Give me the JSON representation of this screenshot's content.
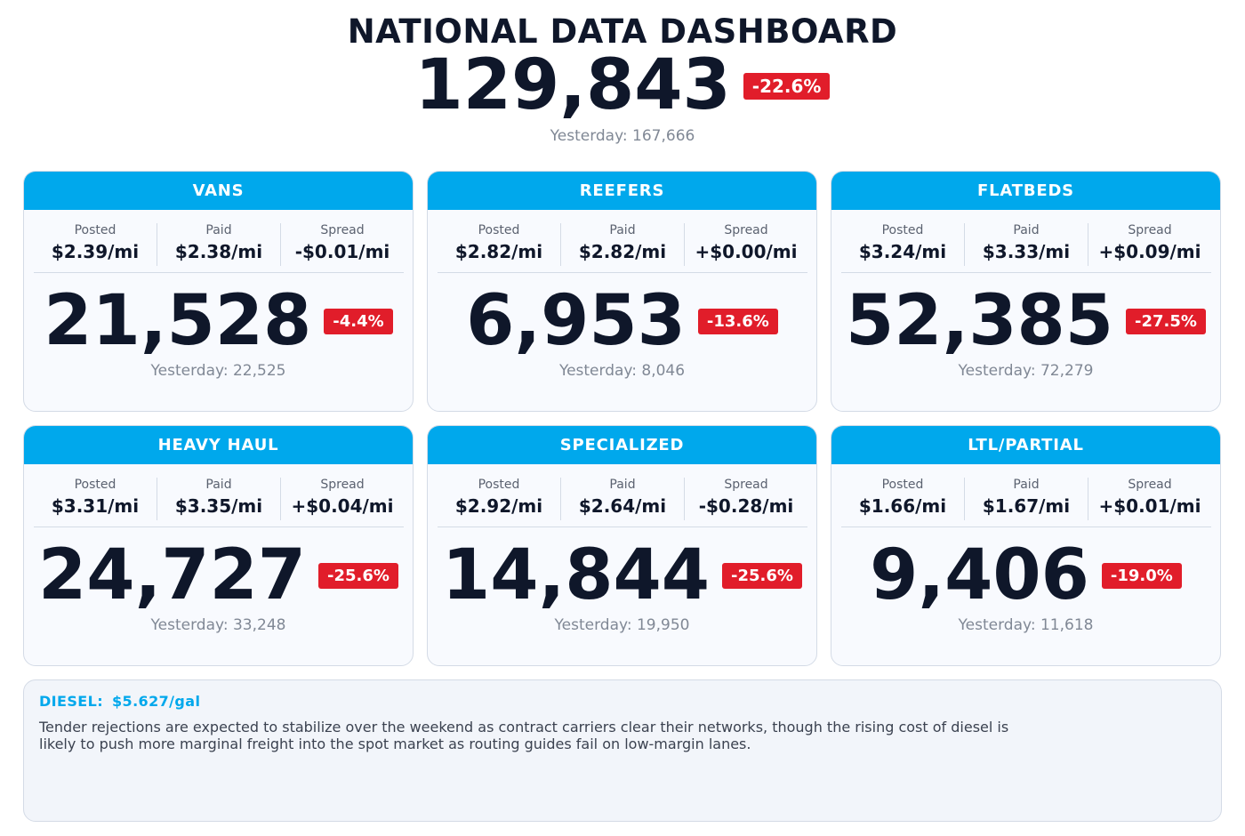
{
  "header": {
    "title": "NATIONAL DATA DASHBOARD",
    "total": "129,843",
    "change": "-22.6%",
    "yesterday": "Yesterday: 167,666"
  },
  "labels": {
    "posted": "Posted",
    "paid": "Paid",
    "spread": "Spread"
  },
  "cards": [
    {
      "title": "VANS",
      "posted": "$2.39/mi",
      "paid": "$2.38/mi",
      "spread": "-$0.01/mi",
      "count": "21,528",
      "change": "-4.4%",
      "yesterday": "Yesterday: 22,525"
    },
    {
      "title": "REEFERS",
      "posted": "$2.82/mi",
      "paid": "$2.82/mi",
      "spread": "+$0.00/mi",
      "count": "6,953",
      "change": "-13.6%",
      "yesterday": "Yesterday: 8,046"
    },
    {
      "title": "FLATBEDS",
      "posted": "$3.24/mi",
      "paid": "$3.33/mi",
      "spread": "+$0.09/mi",
      "count": "52,385",
      "change": "-27.5%",
      "yesterday": "Yesterday: 72,279"
    },
    {
      "title": "HEAVY HAUL",
      "posted": "$3.31/mi",
      "paid": "$3.35/mi",
      "spread": "+$0.04/mi",
      "count": "24,727",
      "change": "-25.6%",
      "yesterday": "Yesterday: 33,248"
    },
    {
      "title": "SPECIALIZED",
      "posted": "$2.92/mi",
      "paid": "$2.64/mi",
      "spread": "-$0.28/mi",
      "count": "14,844",
      "change": "-25.6%",
      "yesterday": "Yesterday: 19,950"
    },
    {
      "title": "LTL/PARTIAL",
      "posted": "$1.66/mi",
      "paid": "$1.67/mi",
      "spread": "+$0.01/mi",
      "count": "9,406",
      "change": "-19.0%",
      "yesterday": "Yesterday: 11,618"
    }
  ],
  "diesel": {
    "label": "DIESEL:",
    "price": "$5.627/gal",
    "commentary": "Tender rejections are expected to stabilize over the weekend as contract carriers clear their networks, though the rising cost of diesel is likely to push more marginal freight into the spot market as routing guides fail on low-margin lanes."
  },
  "colors": {
    "accent": "#00a8ec",
    "negative_badge": "#e11d2a",
    "text_dark": "#0f172a",
    "text_muted": "#808895"
  }
}
